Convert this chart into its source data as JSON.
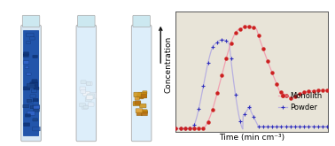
{
  "xlabel": "Time (min cm⁻³)",
  "ylabel": "Concentration",
  "monolith_line_color": "#f0a0b0",
  "monolith_marker_color": "#cc2020",
  "powder_line_color": "#b8b0e0",
  "powder_marker_color": "#3030bb",
  "bg_color": "#eeebe0",
  "chart_bg": "#e8e4d8",
  "legend_monolith": "Monolith",
  "legend_powder": "Powder",
  "font_size": 6.5,
  "legend_font_size": 6.0,
  "arrow_color": "#111111"
}
